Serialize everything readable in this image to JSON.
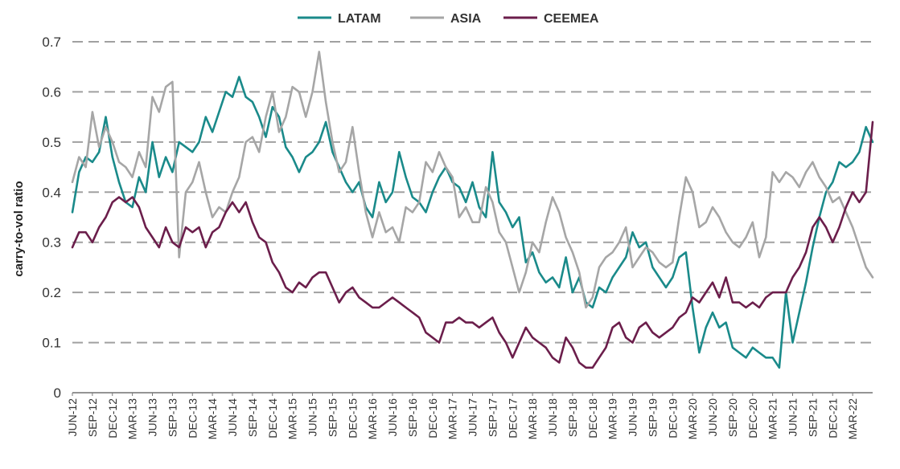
{
  "chart_data": {
    "type": "line",
    "title": "",
    "xlabel": "",
    "ylabel": "carry-to-vol ratio",
    "ylim": [
      0,
      0.7
    ],
    "yticks": [
      "0",
      "0.1",
      "0.2",
      "0.3",
      "0.4",
      "0.5",
      "0.6",
      "0.7"
    ],
    "grid": "horizontal dashed",
    "legend_position": "top-center",
    "xlim": [
      "2012-06",
      "2022-06"
    ],
    "xtick_labels": [
      "JUN-12",
      "SEP-12",
      "DEC-12",
      "MAR-13",
      "JUN-13",
      "SEP-13",
      "DEC-13",
      "MAR-14",
      "JUN-14",
      "SEP-14",
      "DEC-14",
      "MAR-15",
      "JUN-15",
      "SEP-15",
      "DEC-15",
      "MAR-16",
      "JUN-16",
      "SEP-16",
      "DEC-16",
      "MAR-17",
      "JUN-17",
      "SEP-17",
      "DEC-17",
      "MAR-18",
      "JUN-18",
      "SEP-18",
      "DEC-18",
      "MAR-19",
      "JUN-19",
      "SEP-19",
      "DEC-19",
      "MAR-20",
      "JUN-20",
      "SEP-20",
      "DEC-20",
      "MAR-21",
      "JUN-21",
      "SEP-21",
      "DEC-21",
      "MAR-22"
    ],
    "series": [
      {
        "name": "LATAM",
        "color": "#1a8a8a",
        "x": [
          "2012-06",
          "2012-07",
          "2012-08",
          "2012-09",
          "2012-10",
          "2012-11",
          "2012-12",
          "2013-01",
          "2013-02",
          "2013-03",
          "2013-04",
          "2013-05",
          "2013-06",
          "2013-07",
          "2013-08",
          "2013-09",
          "2013-10",
          "2013-11",
          "2013-12",
          "2014-01",
          "2014-02",
          "2014-03",
          "2014-04",
          "2014-05",
          "2014-06",
          "2014-07",
          "2014-08",
          "2014-09",
          "2014-10",
          "2014-11",
          "2014-12",
          "2015-01",
          "2015-02",
          "2015-03",
          "2015-04",
          "2015-05",
          "2015-06",
          "2015-07",
          "2015-08",
          "2015-09",
          "2015-10",
          "2015-11",
          "2015-12",
          "2016-01",
          "2016-02",
          "2016-03",
          "2016-04",
          "2016-05",
          "2016-06",
          "2016-07",
          "2016-08",
          "2016-09",
          "2016-10",
          "2016-11",
          "2016-12",
          "2017-01",
          "2017-02",
          "2017-03",
          "2017-04",
          "2017-05",
          "2017-06",
          "2017-07",
          "2017-08",
          "2017-09",
          "2017-10",
          "2017-11",
          "2017-12",
          "2018-01",
          "2018-02",
          "2018-03",
          "2018-04",
          "2018-05",
          "2018-06",
          "2018-07",
          "2018-08",
          "2018-09",
          "2018-10",
          "2018-11",
          "2018-12",
          "2019-01",
          "2019-02",
          "2019-03",
          "2019-04",
          "2019-05",
          "2019-06",
          "2019-07",
          "2019-08",
          "2019-09",
          "2019-10",
          "2019-11",
          "2019-12",
          "2020-01",
          "2020-02",
          "2020-03",
          "2020-04",
          "2020-05",
          "2020-06",
          "2020-07",
          "2020-08",
          "2020-09",
          "2020-10",
          "2020-11",
          "2020-12",
          "2021-01",
          "2021-02",
          "2021-03",
          "2021-04",
          "2021-05",
          "2021-06",
          "2021-07",
          "2021-08",
          "2021-09",
          "2021-10",
          "2021-11",
          "2021-12",
          "2022-01",
          "2022-02",
          "2022-03",
          "2022-04",
          "2022-05",
          "2022-06"
        ],
        "values": [
          0.36,
          0.44,
          0.47,
          0.46,
          0.48,
          0.55,
          0.47,
          0.42,
          0.38,
          0.37,
          0.43,
          0.4,
          0.5,
          0.43,
          0.47,
          0.44,
          0.5,
          0.49,
          0.48,
          0.5,
          0.55,
          0.52,
          0.56,
          0.6,
          0.59,
          0.63,
          0.59,
          0.58,
          0.55,
          0.51,
          0.57,
          0.55,
          0.49,
          0.47,
          0.44,
          0.47,
          0.48,
          0.5,
          0.54,
          0.48,
          0.45,
          0.42,
          0.4,
          0.42,
          0.37,
          0.35,
          0.42,
          0.38,
          0.4,
          0.48,
          0.43,
          0.39,
          0.38,
          0.36,
          0.4,
          0.43,
          0.45,
          0.42,
          0.41,
          0.38,
          0.42,
          0.37,
          0.35,
          0.48,
          0.38,
          0.36,
          0.33,
          0.35,
          0.26,
          0.28,
          0.24,
          0.22,
          0.23,
          0.21,
          0.27,
          0.2,
          0.23,
          0.18,
          0.17,
          0.21,
          0.2,
          0.23,
          0.25,
          0.27,
          0.32,
          0.29,
          0.3,
          0.25,
          0.23,
          0.21,
          0.23,
          0.27,
          0.28,
          0.17,
          0.08,
          0.13,
          0.16,
          0.13,
          0.14,
          0.09,
          0.08,
          0.07,
          0.09,
          0.08,
          0.07,
          0.07,
          0.05,
          0.2,
          0.1,
          0.16,
          0.22,
          0.29,
          0.35,
          0.4,
          0.42,
          0.46,
          0.45,
          0.46,
          0.48,
          0.53,
          0.5
        ]
      },
      {
        "name": "ASIA",
        "color": "#a6a6a6",
        "x": [
          "2012-06",
          "2012-07",
          "2012-08",
          "2012-09",
          "2012-10",
          "2012-11",
          "2012-12",
          "2013-01",
          "2013-02",
          "2013-03",
          "2013-04",
          "2013-05",
          "2013-06",
          "2013-07",
          "2013-08",
          "2013-09",
          "2013-10",
          "2013-11",
          "2013-12",
          "2014-01",
          "2014-02",
          "2014-03",
          "2014-04",
          "2014-05",
          "2014-06",
          "2014-07",
          "2014-08",
          "2014-09",
          "2014-10",
          "2014-11",
          "2014-12",
          "2015-01",
          "2015-02",
          "2015-03",
          "2015-04",
          "2015-05",
          "2015-06",
          "2015-07",
          "2015-08",
          "2015-09",
          "2015-10",
          "2015-11",
          "2015-12",
          "2016-01",
          "2016-02",
          "2016-03",
          "2016-04",
          "2016-05",
          "2016-06",
          "2016-07",
          "2016-08",
          "2016-09",
          "2016-10",
          "2016-11",
          "2016-12",
          "2017-01",
          "2017-02",
          "2017-03",
          "2017-04",
          "2017-05",
          "2017-06",
          "2017-07",
          "2017-08",
          "2017-09",
          "2017-10",
          "2017-11",
          "2017-12",
          "2018-01",
          "2018-02",
          "2018-03",
          "2018-04",
          "2018-05",
          "2018-06",
          "2018-07",
          "2018-08",
          "2018-09",
          "2018-10",
          "2018-11",
          "2018-12",
          "2019-01",
          "2019-02",
          "2019-03",
          "2019-04",
          "2019-05",
          "2019-06",
          "2019-07",
          "2019-08",
          "2019-09",
          "2019-10",
          "2019-11",
          "2019-12",
          "2020-01",
          "2020-02",
          "2020-03",
          "2020-04",
          "2020-05",
          "2020-06",
          "2020-07",
          "2020-08",
          "2020-09",
          "2020-10",
          "2020-11",
          "2020-12",
          "2021-01",
          "2021-02",
          "2021-03",
          "2021-04",
          "2021-05",
          "2021-06",
          "2021-07",
          "2021-08",
          "2021-09",
          "2021-10",
          "2021-11",
          "2021-12",
          "2022-01",
          "2022-02",
          "2022-03",
          "2022-04",
          "2022-05",
          "2022-06"
        ],
        "values": [
          0.42,
          0.47,
          0.45,
          0.56,
          0.49,
          0.53,
          0.5,
          0.46,
          0.45,
          0.43,
          0.48,
          0.45,
          0.59,
          0.56,
          0.61,
          0.62,
          0.27,
          0.4,
          0.42,
          0.46,
          0.4,
          0.35,
          0.37,
          0.36,
          0.4,
          0.43,
          0.5,
          0.51,
          0.48,
          0.55,
          0.6,
          0.52,
          0.55,
          0.61,
          0.6,
          0.55,
          0.6,
          0.68,
          0.58,
          0.5,
          0.44,
          0.46,
          0.53,
          0.44,
          0.36,
          0.31,
          0.36,
          0.32,
          0.33,
          0.3,
          0.37,
          0.36,
          0.38,
          0.46,
          0.44,
          0.48,
          0.45,
          0.43,
          0.35,
          0.37,
          0.34,
          0.34,
          0.41,
          0.38,
          0.32,
          0.3,
          0.25,
          0.2,
          0.24,
          0.3,
          0.28,
          0.34,
          0.39,
          0.36,
          0.31,
          0.28,
          0.24,
          0.17,
          0.19,
          0.25,
          0.27,
          0.28,
          0.3,
          0.33,
          0.25,
          0.27,
          0.29,
          0.28,
          0.26,
          0.25,
          0.26,
          0.35,
          0.43,
          0.4,
          0.33,
          0.34,
          0.37,
          0.35,
          0.32,
          0.3,
          0.29,
          0.31,
          0.34,
          0.27,
          0.31,
          0.44,
          0.42,
          0.44,
          0.43,
          0.41,
          0.44,
          0.46,
          0.43,
          0.41,
          0.38,
          0.39,
          0.36,
          0.33,
          0.29,
          0.25,
          0.23
        ]
      },
      {
        "name": "CEEMEA",
        "color": "#6b1e4b",
        "x": [
          "2012-06",
          "2012-07",
          "2012-08",
          "2012-09",
          "2012-10",
          "2012-11",
          "2012-12",
          "2013-01",
          "2013-02",
          "2013-03",
          "2013-04",
          "2013-05",
          "2013-06",
          "2013-07",
          "2013-08",
          "2013-09",
          "2013-10",
          "2013-11",
          "2013-12",
          "2014-01",
          "2014-02",
          "2014-03",
          "2014-04",
          "2014-05",
          "2014-06",
          "2014-07",
          "2014-08",
          "2014-09",
          "2014-10",
          "2014-11",
          "2014-12",
          "2015-01",
          "2015-02",
          "2015-03",
          "2015-04",
          "2015-05",
          "2015-06",
          "2015-07",
          "2015-08",
          "2015-09",
          "2015-10",
          "2015-11",
          "2015-12",
          "2016-01",
          "2016-02",
          "2016-03",
          "2016-04",
          "2016-05",
          "2016-06",
          "2016-07",
          "2016-08",
          "2016-09",
          "2016-10",
          "2016-11",
          "2016-12",
          "2017-01",
          "2017-02",
          "2017-03",
          "2017-04",
          "2017-05",
          "2017-06",
          "2017-07",
          "2017-08",
          "2017-09",
          "2017-10",
          "2017-11",
          "2017-12",
          "2018-01",
          "2018-02",
          "2018-03",
          "2018-04",
          "2018-05",
          "2018-06",
          "2018-07",
          "2018-08",
          "2018-09",
          "2018-10",
          "2018-11",
          "2018-12",
          "2019-01",
          "2019-02",
          "2019-03",
          "2019-04",
          "2019-05",
          "2019-06",
          "2019-07",
          "2019-08",
          "2019-09",
          "2019-10",
          "2019-11",
          "2019-12",
          "2020-01",
          "2020-02",
          "2020-03",
          "2020-04",
          "2020-05",
          "2020-06",
          "2020-07",
          "2020-08",
          "2020-09",
          "2020-10",
          "2020-11",
          "2020-12",
          "2021-01",
          "2021-02",
          "2021-03",
          "2021-04",
          "2021-05",
          "2021-06",
          "2021-07",
          "2021-08",
          "2021-09",
          "2021-10",
          "2021-11",
          "2021-12",
          "2022-01",
          "2022-02",
          "2022-03",
          "2022-04",
          "2022-05",
          "2022-06"
        ],
        "values": [
          0.29,
          0.32,
          0.32,
          0.3,
          0.33,
          0.35,
          0.38,
          0.39,
          0.38,
          0.39,
          0.37,
          0.33,
          0.31,
          0.29,
          0.33,
          0.3,
          0.29,
          0.33,
          0.32,
          0.33,
          0.29,
          0.32,
          0.33,
          0.36,
          0.38,
          0.36,
          0.38,
          0.34,
          0.31,
          0.3,
          0.26,
          0.24,
          0.21,
          0.2,
          0.22,
          0.21,
          0.23,
          0.24,
          0.24,
          0.21,
          0.18,
          0.2,
          0.21,
          0.19,
          0.18,
          0.17,
          0.17,
          0.18,
          0.19,
          0.18,
          0.17,
          0.16,
          0.15,
          0.12,
          0.11,
          0.1,
          0.14,
          0.14,
          0.15,
          0.14,
          0.14,
          0.13,
          0.14,
          0.15,
          0.12,
          0.1,
          0.07,
          0.1,
          0.13,
          0.11,
          0.1,
          0.09,
          0.07,
          0.06,
          0.11,
          0.09,
          0.06,
          0.05,
          0.05,
          0.07,
          0.09,
          0.13,
          0.14,
          0.11,
          0.1,
          0.13,
          0.14,
          0.12,
          0.11,
          0.12,
          0.13,
          0.15,
          0.16,
          0.19,
          0.18,
          0.2,
          0.22,
          0.19,
          0.23,
          0.18,
          0.18,
          0.17,
          0.18,
          0.17,
          0.19,
          0.2,
          0.2,
          0.2,
          0.23,
          0.25,
          0.28,
          0.33,
          0.35,
          0.33,
          0.3,
          0.33,
          0.37,
          0.4,
          0.38,
          0.4,
          0.54
        ]
      }
    ]
  }
}
